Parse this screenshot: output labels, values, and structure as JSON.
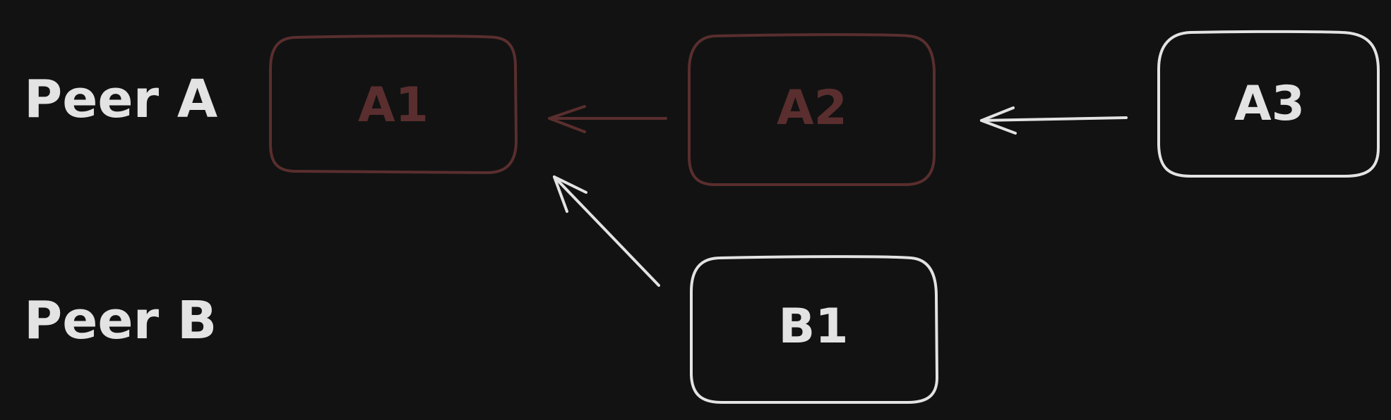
{
  "colors": {
    "background": "#121212",
    "highlight": "#5a2e2e",
    "normal": "#e3e3e3"
  },
  "labels": {
    "peer_a": "Peer A",
    "peer_b": "Peer B"
  },
  "nodes": {
    "a1": {
      "label": "A1",
      "state": "highlighted"
    },
    "a2": {
      "label": "A2",
      "state": "highlighted"
    },
    "a3": {
      "label": "A3",
      "state": "normal"
    },
    "b1": {
      "label": "B1",
      "state": "normal"
    }
  },
  "edges": [
    {
      "from": "A2",
      "to": "A1",
      "state": "highlighted"
    },
    {
      "from": "A3",
      "to": "A2",
      "state": "normal"
    },
    {
      "from": "B1",
      "to": "A1",
      "state": "normal"
    }
  ]
}
